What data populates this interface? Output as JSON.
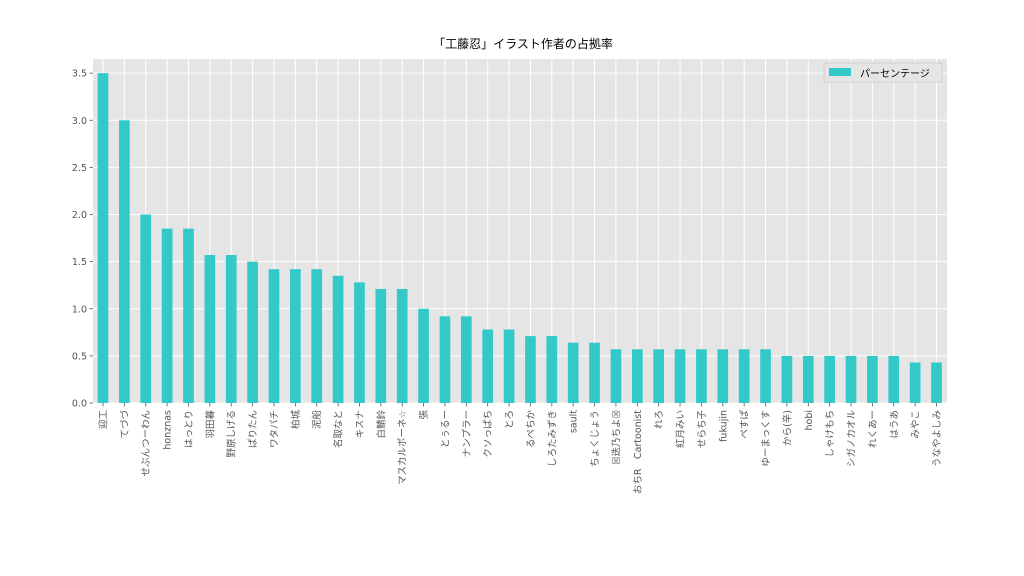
{
  "chart_data": {
    "type": "bar",
    "title": "「工藤忍」イラスト作者の占拠率",
    "xlabel": "",
    "ylabel": "",
    "ylim": [
      0,
      3.65
    ],
    "yticks": [
      0.0,
      0.5,
      1.0,
      1.5,
      2.0,
      2.5,
      3.0,
      3.5
    ],
    "ytick_labels": [
      "0.0",
      "0.5",
      "1.0",
      "1.5",
      "2.0",
      "2.5",
      "3.0",
      "3.5"
    ],
    "grid": true,
    "legend_position": "top-right",
    "categories": [
      "迎工",
      "てづづ",
      "せぶんつーわん",
      "honznas",
      "はっとり",
      "羽田暮",
      "野原しげる",
      "ぱりたん",
      "ワタパチ",
      "柏城",
      "泥船",
      "名取なと",
      "キスナ",
      "白鯖鈴",
      "マスカルポーネ☆",
      "張",
      "とぅるー",
      "ナンプラー",
      "クソっぱち",
      "とろ",
      "るぺちか",
      "しろたみずき",
      "sault",
      "ちょくじょう",
      "☒迭乃ちよ☒",
      "おちR　Cartoonist",
      "れろ",
      "紅月みい",
      "せらち子",
      "fukujin",
      "ぺすぱ",
      "ゆーまっくす",
      "から(辛)",
      "hobi",
      "しゃけもち",
      "シガノカオル",
      "れくあー",
      "はうあ",
      "みやこ",
      "うなやよしみ"
    ],
    "series": [
      {
        "name": "パーセンテージ",
        "color": "#33c9c9",
        "values": [
          3.5,
          3.0,
          2.0,
          1.85,
          1.85,
          1.57,
          1.57,
          1.5,
          1.42,
          1.42,
          1.42,
          1.35,
          1.28,
          1.21,
          1.21,
          1.0,
          0.92,
          0.92,
          0.78,
          0.78,
          0.71,
          0.71,
          0.64,
          0.64,
          0.57,
          0.57,
          0.57,
          0.57,
          0.57,
          0.57,
          0.57,
          0.57,
          0.5,
          0.5,
          0.5,
          0.5,
          0.5,
          0.5,
          0.43,
          0.43
        ]
      }
    ]
  }
}
